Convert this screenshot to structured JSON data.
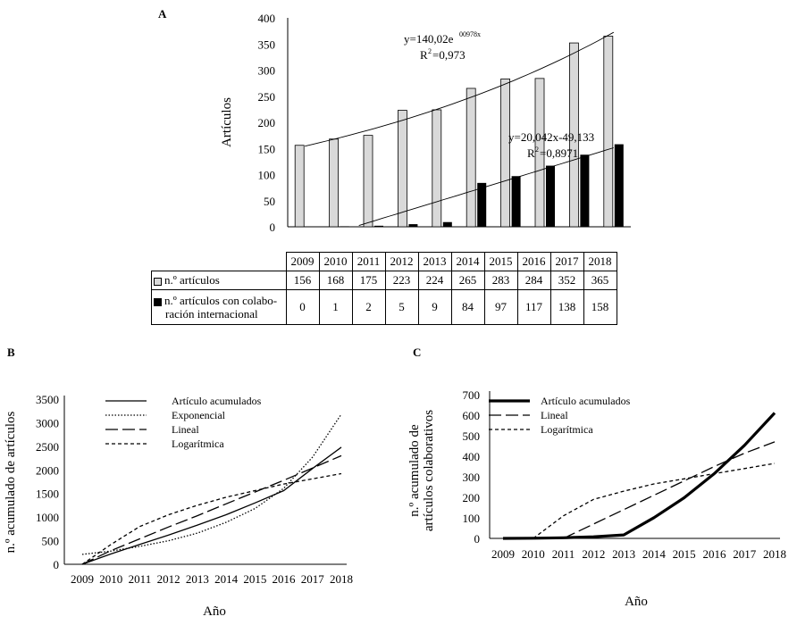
{
  "panels": {
    "a": {
      "label": "A"
    },
    "b": {
      "label": "B"
    },
    "c": {
      "label": "C"
    }
  },
  "chart_data": [
    {
      "type": "bar",
      "ylabel": "Artículos",
      "xlabel": "",
      "ylim": [
        0,
        400
      ],
      "yticks": [
        0,
        50,
        100,
        150,
        200,
        250,
        300,
        350,
        400
      ],
      "categories": [
        "2009",
        "2010",
        "2011",
        "2012",
        "2013",
        "2014",
        "2015",
        "2016",
        "2017",
        "2018"
      ],
      "series": [
        {
          "name": "n.º artículos",
          "color": "#d9d9d9",
          "values": [
            156,
            168,
            175,
            223,
            224,
            265,
            283,
            284,
            352,
            365
          ]
        },
        {
          "name_line1": "n.º artículos  con colabo-",
          "name_line2": "ración internacional",
          "color": "#000000",
          "values": [
            0,
            1,
            2,
            5,
            9,
            84,
            97,
            117,
            138,
            158
          ]
        }
      ],
      "trendlines": [
        {
          "series": 0,
          "kind": "exponential",
          "equation": "y=140,02e",
          "exponent": "00978x",
          "r2_label": "R",
          "r2_value": "=0,973",
          "a": 140.02,
          "b": 0.0978
        },
        {
          "series": 1,
          "kind": "linear",
          "equation": "y=20,042x-49,133",
          "r2_label": "R",
          "r2_value": "=0,8971",
          "slope": 20.042,
          "intercept": -49.133
        }
      ]
    },
    {
      "type": "line",
      "ylabel": "n.º acumulado de artículos",
      "xlabel": "Año",
      "ylim": [
        0,
        3500
      ],
      "yticks": [
        0,
        500,
        1000,
        1500,
        2000,
        2500,
        3000,
        3500
      ],
      "categories": [
        "2009",
        "2010",
        "2011",
        "2012",
        "2013",
        "2014",
        "2015",
        "2016",
        "2017",
        "2018"
      ],
      "series": [
        {
          "name": "Artículo acumulados",
          "style": "solid",
          "values": [
            0,
            220,
            420,
            620,
            830,
            1050,
            1300,
            1560,
            2030,
            2480
          ]
        },
        {
          "name": "Exponencial",
          "style": "dotted",
          "values": [
            210,
            280,
            380,
            500,
            660,
            890,
            1180,
            1610,
            2270,
            3180
          ]
        },
        {
          "name": "Lineal",
          "style": "longdash",
          "values": [
            0,
            290,
            540,
            790,
            1030,
            1280,
            1530,
            1780,
            2040,
            2300
          ]
        },
        {
          "name": "Logarítmica",
          "style": "shortdash",
          "values": [
            0,
            420,
            800,
            1050,
            1250,
            1420,
            1560,
            1700,
            1810,
            1920
          ]
        }
      ]
    },
    {
      "type": "line",
      "ylabel_line1": "n.º acumulado de",
      "ylabel_line2": "artículos colaborativos",
      "xlabel": "Año",
      "ylim": [
        0,
        700
      ],
      "yticks": [
        0,
        100,
        200,
        300,
        400,
        500,
        600,
        700
      ],
      "categories": [
        "2009",
        "2010",
        "2011",
        "2012",
        "2013",
        "2014",
        "2015",
        "2016",
        "2017",
        "2018"
      ],
      "series": [
        {
          "name": "Artículo acumulados",
          "style": "thick",
          "values": [
            0,
            1,
            3,
            8,
            17,
            101,
            198,
            315,
            453,
            611
          ]
        },
        {
          "name": "Lineal",
          "style": "longdash",
          "values": [
            null,
            null,
            0,
            70,
            140,
            210,
            280,
            350,
            415,
            470
          ]
        },
        {
          "name": "Logarítmica",
          "style": "shortdash",
          "values": [
            null,
            0,
            110,
            190,
            230,
            265,
            290,
            315,
            340,
            365
          ]
        }
      ]
    }
  ]
}
